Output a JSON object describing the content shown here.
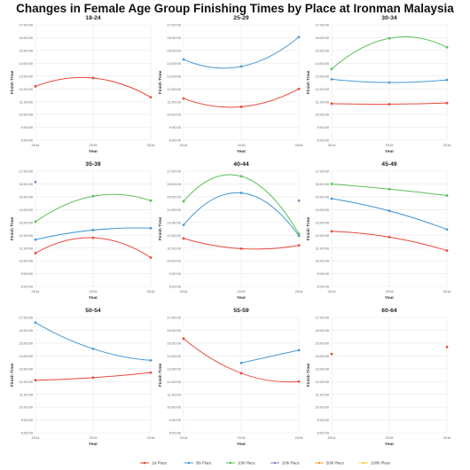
{
  "title": "Changes in Female Age Group Finishing Times by Place at Ironman Malaysia",
  "chart_data": {
    "type": "line",
    "title": "Changes in Female Age Group Finishing Times by Place at Ironman Malaysia",
    "xlabel": "Year",
    "ylabel": "Finish Time",
    "x": [
      2014,
      2015,
      2016
    ],
    "x_tick_labels": [
      "2014",
      "2015",
      "2016"
    ],
    "ylim": [
      8,
      17
    ],
    "y_tick_labels": [
      "8:00:00",
      "9:00:00",
      "10:00:00",
      "11:00:00",
      "12:00:00",
      "13:00:00",
      "14:00:00",
      "15:00:00",
      "16:00:00",
      "17:00:00"
    ],
    "grid": true,
    "legend": {
      "position": "bottom",
      "entries": [
        {
          "name": "1st Place",
          "color": "#e8483b"
        },
        {
          "name": "5th Place",
          "color": "#4a9ad4"
        },
        {
          "name": "10th Place",
          "color": "#5cc05c"
        },
        {
          "name": "20th Place",
          "color": "#9b7fc0"
        },
        {
          "name": "50th Place",
          "color": "#f0a030"
        },
        {
          "name": "100th Place",
          "color": "#f0d040"
        }
      ]
    },
    "panels": [
      {
        "title": "18-24",
        "series": [
          {
            "name": "1st Place",
            "values": [
              12.2,
              12.85,
              11.35
            ]
          }
        ]
      },
      {
        "title": "25-29",
        "series": [
          {
            "name": "1st Place",
            "values": [
              11.25,
              10.6,
              12.0
            ]
          },
          {
            "name": "5th Place",
            "values": [
              14.3,
              13.75,
              16.05
            ]
          }
        ]
      },
      {
        "title": "30-34",
        "series": [
          {
            "name": "1st Place",
            "values": [
              10.85,
              10.8,
              10.9
            ]
          },
          {
            "name": "5th Place",
            "values": [
              12.75,
              12.5,
              12.7
            ]
          },
          {
            "name": "10th Place",
            "values": [
              13.55,
              15.95,
              15.25
            ]
          }
        ]
      },
      {
        "title": "35-39",
        "series": [
          {
            "name": "1st Place",
            "values": [
              10.6,
              11.8,
              10.25
            ]
          },
          {
            "name": "5th Place",
            "values": [
              11.65,
              12.4,
              12.55
            ]
          },
          {
            "name": "10th Place",
            "values": [
              13.05,
              15.05,
              14.7
            ]
          },
          {
            "name": "20th Place",
            "values": [
              16.15,
              null,
              null
            ]
          }
        ]
      },
      {
        "title": "40-44",
        "series": [
          {
            "name": "1st Place",
            "values": [
              11.75,
              10.95,
              11.2
            ]
          },
          {
            "name": "5th Place",
            "values": [
              12.8,
              15.3,
              11.95
            ]
          },
          {
            "name": "10th Place",
            "values": [
              14.65,
              16.6,
              12.1
            ]
          },
          {
            "name": "20th Place",
            "values": [
              null,
              null,
              14.7
            ]
          }
        ]
      },
      {
        "title": "45-49",
        "series": [
          {
            "name": "1st Place",
            "values": [
              12.3,
              11.85,
              10.8
            ]
          },
          {
            "name": "5th Place",
            "values": [
              14.85,
              13.9,
              12.45
            ]
          },
          {
            "name": "10th Place",
            "values": [
              16.0,
              15.6,
              15.1
            ]
          }
        ]
      },
      {
        "title": "50-54",
        "series": [
          {
            "name": "1st Place",
            "values": [
              12.1,
              12.3,
              12.7
            ]
          },
          {
            "name": "5th Place",
            "values": [
              16.6,
              14.55,
              13.65
            ]
          }
        ]
      },
      {
        "title": "55-59",
        "series": [
          {
            "name": "1st Place",
            "values": [
              15.35,
              12.65,
              12.0
            ]
          },
          {
            "name": "5th Place",
            "values": [
              null,
              13.45,
              14.45
            ]
          }
        ]
      },
      {
        "title": "60-64",
        "series": [
          {
            "name": "1st Place",
            "values": [
              14.15,
              null,
              14.7
            ]
          }
        ]
      }
    ]
  }
}
